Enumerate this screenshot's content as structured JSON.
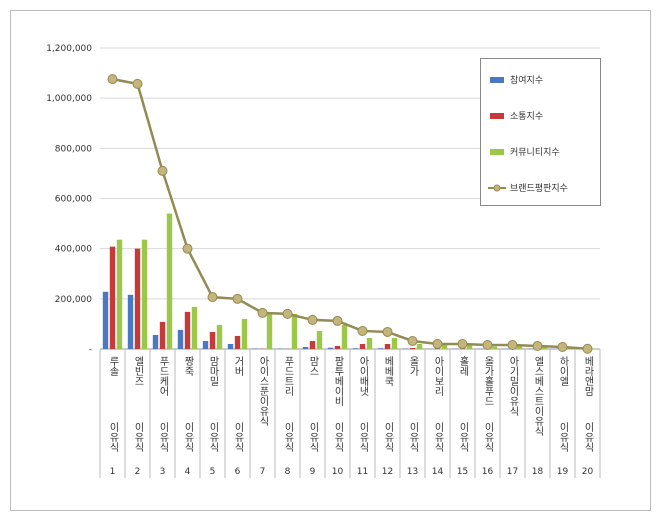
{
  "chart_data": {
    "type": "bar",
    "categories": [
      "루솔",
      "엘빈즈",
      "푸드케어",
      "짱죽",
      "맘마밀",
      "거버",
      "아이스푼이유식",
      "푸드트리",
      "맘스",
      "팜투베이비",
      "아이배냇",
      "베베쿡",
      "올가",
      "아이보리",
      "홀레",
      "올가홀푸드",
      "아기밀이유식",
      "엘스베스트이유식",
      "하이엘",
      "베라앤맘"
    ],
    "category_sub": [
      "이유식",
      "이유식",
      "이유식",
      "이유식",
      "이유식",
      "이유식",
      null,
      "이유식",
      "이유식",
      "이유식",
      "이유식",
      "이유식",
      "이유식",
      "이유식",
      "이유식",
      "이유식",
      null,
      null,
      "이유식",
      "이유식"
    ],
    "ranks": [
      1,
      2,
      3,
      4,
      5,
      6,
      7,
      8,
      9,
      10,
      11,
      12,
      13,
      14,
      15,
      16,
      17,
      18,
      19,
      20
    ],
    "series": [
      {
        "name": "참여지수",
        "type": "bar",
        "color": "#4a78c2",
        "values": [
          228000,
          216000,
          56000,
          76000,
          32000,
          20000,
          2000,
          2000,
          8000,
          5000,
          3000,
          3000,
          2000,
          1000,
          1000,
          1000,
          1000,
          1000,
          1000,
          1000
        ]
      },
      {
        "name": "소통지수",
        "type": "bar",
        "color": "#c63a3a",
        "values": [
          408000,
          400000,
          108000,
          148000,
          68000,
          52000,
          1000,
          1000,
          32000,
          12000,
          20000,
          20000,
          4000,
          2000,
          1000,
          1000,
          1000,
          1000,
          1000,
          1000
        ]
      },
      {
        "name": "커뮤니티지수",
        "type": "bar",
        "color": "#9cc84a",
        "values": [
          436000,
          436000,
          540000,
          168000,
          96000,
          120000,
          140000,
          140000,
          72000,
          96000,
          44000,
          44000,
          20000,
          16000,
          16000,
          10000,
          12000,
          8000,
          6000,
          1000
        ]
      },
      {
        "name": "브랜드평판지수",
        "type": "line",
        "color": "#948a54",
        "values": [
          1076000,
          1057000,
          710000,
          400000,
          207000,
          200000,
          144000,
          140000,
          116000,
          112000,
          72000,
          68000,
          32000,
          20000,
          20000,
          16000,
          16000,
          12000,
          8000,
          1000
        ]
      }
    ],
    "ylim": [
      0,
      1200000
    ],
    "yticks": [
      {
        "value": 0,
        "label": "-"
      },
      {
        "value": 200000,
        "label": "200,000"
      },
      {
        "value": 400000,
        "label": "400,000"
      },
      {
        "value": 600000,
        "label": "600,000"
      },
      {
        "value": 800000,
        "label": "800,000"
      },
      {
        "value": 1000000,
        "label": "1,000,000"
      },
      {
        "value": 1200000,
        "label": "1,200,000"
      }
    ],
    "grid": true,
    "legend": "upper right"
  }
}
